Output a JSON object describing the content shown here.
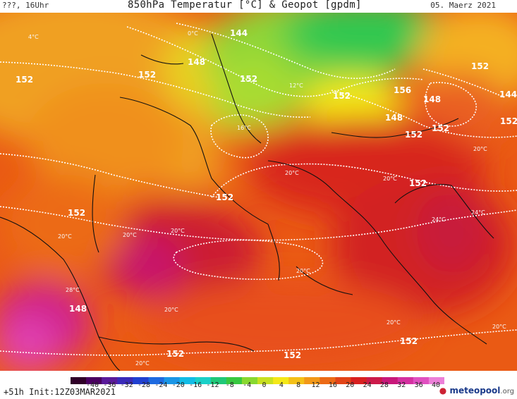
{
  "header": {
    "left": "???, 16Uhr",
    "title": "850hPa Temperatur [°C] & Geopot [gpdm]",
    "date": "05. Maerz 2021"
  },
  "footer": {
    "run_info": "+51h Init:12Z03MAR2021",
    "brand": "meteopool",
    "brand_suffix": ".org"
  },
  "legend": {
    "ticks": [
      "-40",
      "-36",
      "-32",
      "-28",
      "-24",
      "-20",
      "-16",
      "-12",
      "-8",
      "-4",
      "0",
      "4",
      "8",
      "12",
      "16",
      "20",
      "24",
      "28",
      "32",
      "36",
      "40"
    ]
  },
  "map_labels": {
    "geopot": [
      "144",
      "148",
      "152",
      "152",
      "152",
      "152",
      "152",
      "152",
      "152",
      "152",
      "148",
      "152",
      "152",
      "156",
      "148",
      "152",
      "152",
      "148",
      "144",
      "152",
      "152"
    ],
    "temp": [
      "4°C",
      "0°C",
      "20°C",
      "20°C",
      "24°C",
      "20°C",
      "20°C",
      "20°C",
      "20°C",
      "24°C",
      "20°C",
      "20°C",
      "20°C",
      "28°C",
      "20°C",
      "12°C",
      "16°C",
      "20°C"
    ]
  },
  "colors": {
    "grid_contour": "#ffffff",
    "country_border": "#111111"
  }
}
